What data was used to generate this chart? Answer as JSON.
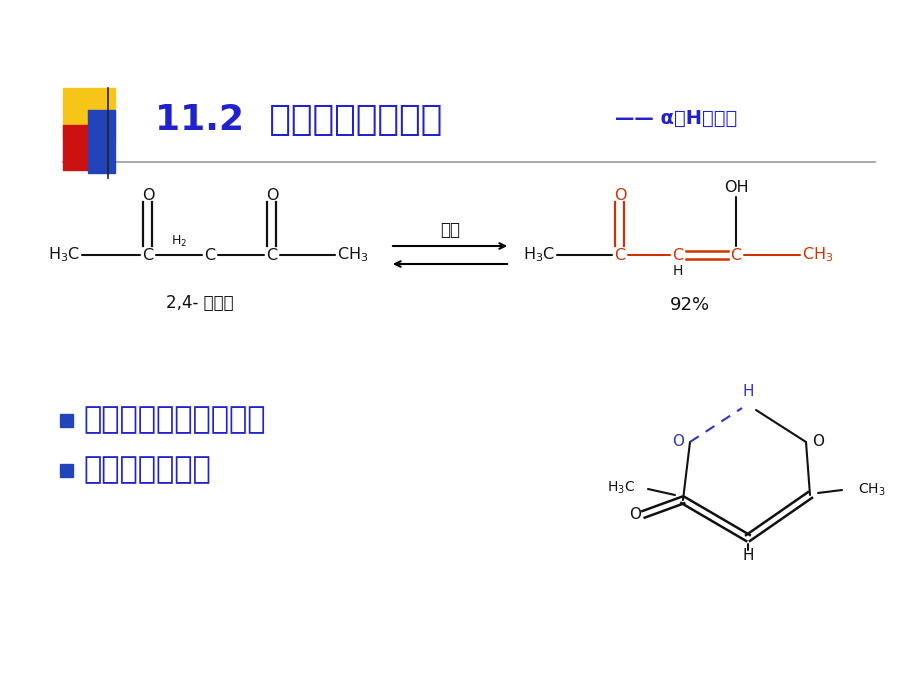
{
  "title_main": "11.2  醛、酮的化学性质",
  "title_sub": "—— α－H的反应",
  "bg_color": "#ffffff",
  "title_color": "#2222cc",
  "subtitle_color": "#2222cc",
  "label_2_4": "2,4- 戊二酮",
  "label_92": "92%",
  "label_jiwang": "己烷",
  "bullet1": "参与反应结构是烯醇式",
  "bullet2": "酸或碱作催化剂",
  "red_color": "#cc3300",
  "blue_color": "#3333bb",
  "black_color": "#111111",
  "deco_yellow": "#f5c518",
  "deco_red": "#cc1111",
  "deco_blue": "#2244bb"
}
